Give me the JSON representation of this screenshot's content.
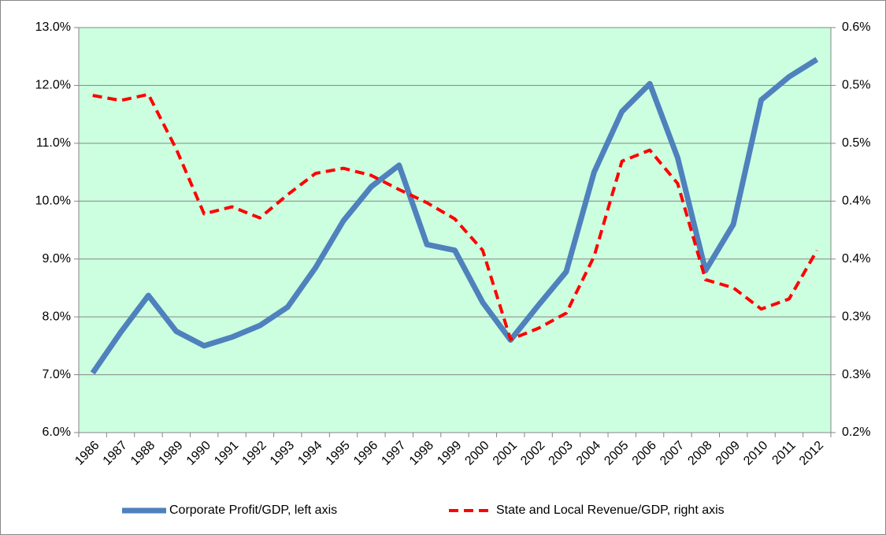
{
  "chart_data": {
    "type": "line",
    "categories": [
      "1986",
      "1987",
      "1988",
      "1989",
      "1990",
      "1991",
      "1992",
      "1993",
      "1994",
      "1995",
      "1996",
      "1997",
      "1998",
      "1999",
      "2000",
      "2001",
      "2002",
      "2003",
      "2004",
      "2005",
      "2006",
      "2007",
      "2008",
      "2009",
      "2010",
      "2011",
      "2012"
    ],
    "series": [
      {
        "name": "Corporate Profit/GDP, left axis",
        "color": "#4f81bd",
        "axis": "y",
        "values": [
          7.03,
          7.73,
          8.37,
          7.75,
          7.5,
          7.65,
          7.85,
          8.17,
          8.85,
          9.66,
          10.25,
          10.62,
          9.25,
          9.15,
          8.25,
          7.6,
          8.2,
          8.78,
          10.5,
          11.55,
          12.03,
          10.75,
          8.8,
          9.6,
          11.75,
          12.15,
          12.45
        ]
      },
      {
        "name": "State and Local Revenue/GDP, right axis",
        "color": "#ff0000",
        "axis": "y2",
        "values": [
          0.533,
          0.528,
          0.534,
          0.48,
          0.416,
          0.423,
          0.412,
          0.435,
          0.456,
          0.461,
          0.454,
          0.44,
          0.427,
          0.411,
          0.38,
          0.292,
          0.303,
          0.318,
          0.374,
          0.468,
          0.479,
          0.446,
          0.351,
          0.343,
          0.322,
          0.332,
          0.38
        ]
      }
    ],
    "ylim": [
      6,
      13
    ],
    "yticks": [
      {
        "value": 6,
        "label": "6.0%"
      },
      {
        "value": 7,
        "label": "7.0%"
      },
      {
        "value": 8,
        "label": "8.0%"
      },
      {
        "value": 9,
        "label": "9.0%"
      },
      {
        "value": 10,
        "label": "10.0%"
      },
      {
        "value": 11,
        "label": "11.0%"
      },
      {
        "value": 12,
        "label": "12.0%"
      },
      {
        "value": 13,
        "label": "13.0%"
      }
    ],
    "y2lim": [
      0.2,
      0.6
    ],
    "y2ticks": [
      {
        "value": 0.2,
        "label": "0.2%"
      },
      {
        "value": 0.2571,
        "label": "0.3%"
      },
      {
        "value": 0.3143,
        "label": "0.3%"
      },
      {
        "value": 0.3714,
        "label": "0.4%"
      },
      {
        "value": 0.4286,
        "label": "0.4%"
      },
      {
        "value": 0.4857,
        "label": "0.5%"
      },
      {
        "value": 0.5429,
        "label": "0.5%"
      },
      {
        "value": 0.6,
        "label": "0.6%"
      }
    ],
    "grid": true,
    "legend": "bottom",
    "background": "#ccffe0"
  }
}
